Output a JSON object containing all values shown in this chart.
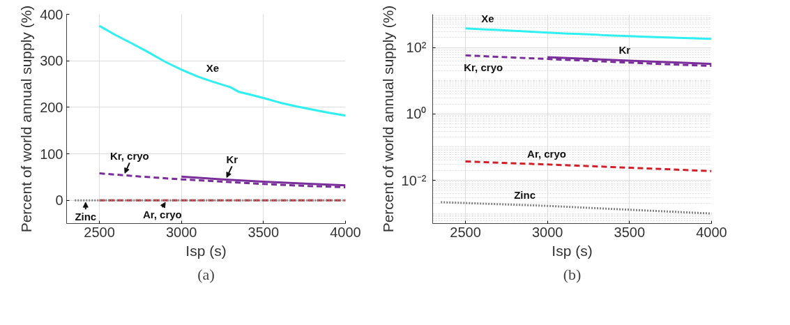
{
  "chart_data": [
    {
      "type": "line",
      "xlabel": "Isp (s)",
      "ylabel": "Percent of world annual supply (%)",
      "xlim": [
        2300,
        4000
      ],
      "ylim": [
        -50,
        400
      ],
      "xticks": [
        2500,
        3000,
        3500,
        4000
      ],
      "yticks": [
        0,
        100,
        200,
        300,
        400
      ],
      "grid": true,
      "series": [
        {
          "name": "Xe",
          "color": "#2ff0f0",
          "line_style": "solid",
          "x": [
            2500,
            2600,
            2700,
            2800,
            2900,
            3000,
            3100,
            3200,
            3300,
            3350,
            3400,
            3500,
            3600,
            3700,
            3800,
            3900,
            4000
          ],
          "values": [
            375,
            355,
            337,
            318,
            298,
            281,
            266,
            254,
            243,
            233,
            229,
            220,
            210,
            202,
            195,
            188,
            182
          ]
        },
        {
          "name": "Kr, cryo",
          "color": "#7a2e9a",
          "line_style": "dashed",
          "x": [
            2500,
            2750,
            3000,
            3250,
            3500,
            3750,
            4000
          ],
          "values": [
            58,
            51,
            45,
            40,
            35,
            31,
            28
          ]
        },
        {
          "name": "Kr",
          "color": "#7a2e9a",
          "line_style": "solid",
          "x": [
            3000,
            3250,
            3500,
            3750,
            4000
          ],
          "values": [
            51,
            45,
            40,
            36,
            32
          ]
        },
        {
          "name": "Ar, cryo",
          "color": "#d0202a",
          "line_style": "dashed",
          "x": [
            2500,
            3000,
            3500,
            4000
          ],
          "values": [
            0.037,
            0.03,
            0.024,
            0.019
          ]
        },
        {
          "name": "Zinc",
          "color": "#808080",
          "line_style": "dotted",
          "x": [
            2350,
            3000,
            3500,
            4000
          ],
          "values": [
            0.0022,
            0.0017,
            0.0013,
            0.001
          ]
        }
      ],
      "annotations": [
        "(a)"
      ]
    },
    {
      "type": "line",
      "xlabel": "Isp (s)",
      "ylabel": "Percent of world annual supply (%)",
      "log": true,
      "xlim": [
        2300,
        4000
      ],
      "ylim": [
        0.0005,
        1000
      ],
      "xticks": [
        2500,
        3000,
        3500,
        4000
      ],
      "yticks": [
        {
          "value": 0.01,
          "label": "10⁻²"
        },
        {
          "value": 1,
          "label": "10⁰"
        },
        {
          "value": 100,
          "label": "10²"
        }
      ],
      "grid": true,
      "series": [
        {
          "name": "Xe",
          "color": "#2ff0f0",
          "line_style": "solid",
          "x": [
            2500,
            2600,
            2700,
            2800,
            2900,
            3000,
            3100,
            3200,
            3300,
            3350,
            3400,
            3500,
            3600,
            3700,
            3800,
            3900,
            4000
          ],
          "values": [
            375,
            355,
            337,
            318,
            298,
            281,
            266,
            254,
            243,
            233,
            229,
            220,
            210,
            202,
            195,
            188,
            182
          ]
        },
        {
          "name": "Kr, cryo",
          "color": "#7a2e9a",
          "line_style": "dashed",
          "x": [
            2500,
            2750,
            3000,
            3250,
            3500,
            3750,
            4000
          ],
          "values": [
            58,
            51,
            45,
            40,
            35,
            31,
            28
          ]
        },
        {
          "name": "Kr",
          "color": "#7a2e9a",
          "line_style": "solid",
          "x": [
            3000,
            3250,
            3500,
            3750,
            4000
          ],
          "values": [
            51,
            45,
            40,
            36,
            32
          ]
        },
        {
          "name": "Ar, cryo",
          "color": "#d0202a",
          "line_style": "dashed",
          "x": [
            2500,
            3000,
            3500,
            4000
          ],
          "values": [
            0.037,
            0.03,
            0.024,
            0.019
          ]
        },
        {
          "name": "Zinc",
          "color": "#808080",
          "line_style": "dotted",
          "x": [
            2350,
            3000,
            3500,
            4000
          ],
          "values": [
            0.0022,
            0.0017,
            0.0013,
            0.001
          ]
        }
      ],
      "annotations": [
        "(b)"
      ]
    }
  ]
}
